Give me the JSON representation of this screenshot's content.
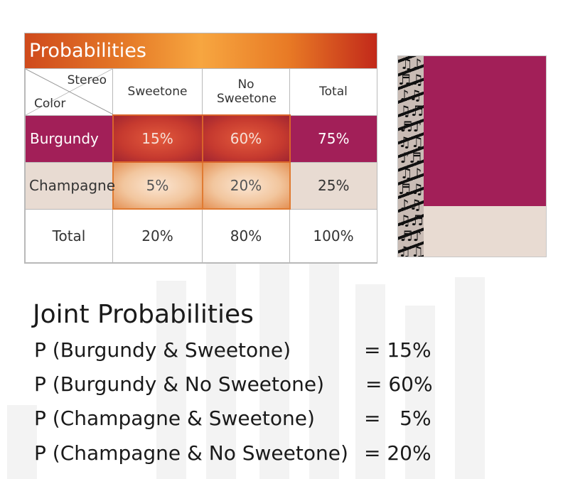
{
  "table": {
    "title": "Probabilities",
    "corner_top": "Stereo",
    "corner_bottom": "Color",
    "headers": [
      "Sweetone",
      "No Sweetone",
      "Total"
    ],
    "rows": [
      {
        "label": "Burgundy",
        "values": [
          "15%",
          "60%",
          "75%"
        ]
      },
      {
        "label": "Champagne",
        "values": [
          "5%",
          "20%",
          "25%"
        ]
      },
      {
        "label": "Total",
        "values": [
          "20%",
          "80%",
          "100%"
        ]
      }
    ]
  },
  "mosaic": {
    "burgundy_color": "#a21f58",
    "champagne_color": "#e8dbd2",
    "burgundy_share": 0.75,
    "champagne_share": 0.25,
    "pattern_icon": "music-notes-pattern"
  },
  "joint": {
    "title": "Joint Probabilities",
    "items": [
      {
        "label": "P (Burgundy & Sweetone)",
        "value": "= 15%"
      },
      {
        "label": "P (Burgundy & No Sweetone)",
        "value": "= 60%"
      },
      {
        "label": "P (Champagne & Sweetone)",
        "value": "=   5%"
      },
      {
        "label": "P (Champagne & No Sweetone)",
        "value": "= 20%"
      }
    ]
  },
  "colors": {
    "title_gradient_start": "#cf4a1c",
    "title_gradient_mid": "#f7a640",
    "title_gradient_end": "#c2291a",
    "burgundy": "#a21f58",
    "champagne": "#e8dbd2"
  }
}
